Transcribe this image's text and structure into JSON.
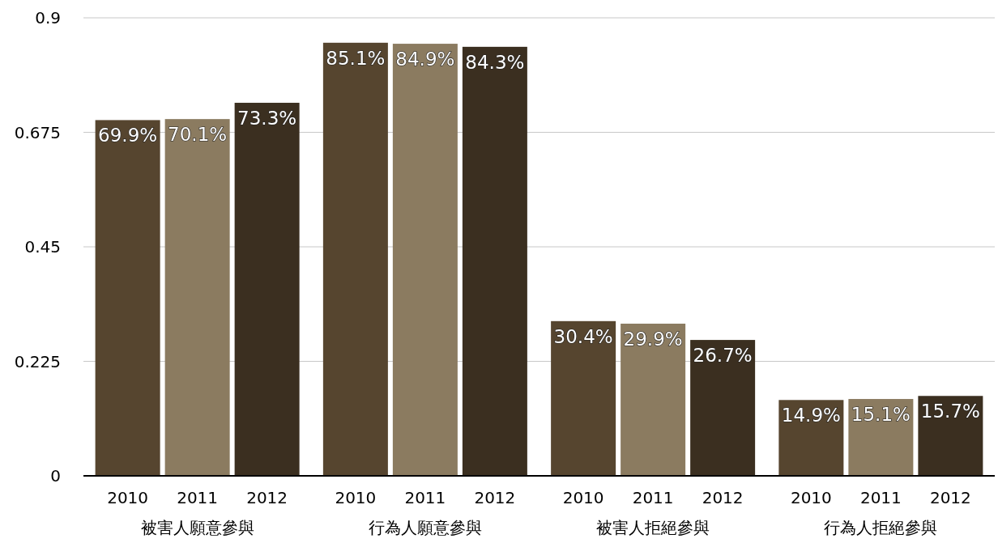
{
  "chart_data": {
    "type": "bar",
    "categories": [
      "被害人願意參與",
      "行為人願意參與",
      "被害人拒絕參與",
      "行為人拒絕參與"
    ],
    "series": [
      {
        "name": "2010",
        "color": "#56452f",
        "values": [
          0.699,
          0.851,
          0.304,
          0.149
        ],
        "value_labels": [
          "69.9%",
          "85.1%",
          "30.4%",
          "14.9%"
        ]
      },
      {
        "name": "2011",
        "color": "#8b7b60",
        "values": [
          0.701,
          0.849,
          0.299,
          0.151
        ],
        "value_labels": [
          "70.1%",
          "84.9%",
          "29.9%",
          "15.1%"
        ]
      },
      {
        "name": "2012",
        "color": "#3b2f20",
        "values": [
          0.733,
          0.843,
          0.267,
          0.157
        ],
        "value_labels": [
          "73.3%",
          "84.3%",
          "26.7%",
          "15.7%"
        ]
      }
    ],
    "ylim": [
      0,
      0.9
    ],
    "yticks": [
      0,
      0.225,
      0.45,
      0.675,
      0.9
    ],
    "grid": "y"
  }
}
